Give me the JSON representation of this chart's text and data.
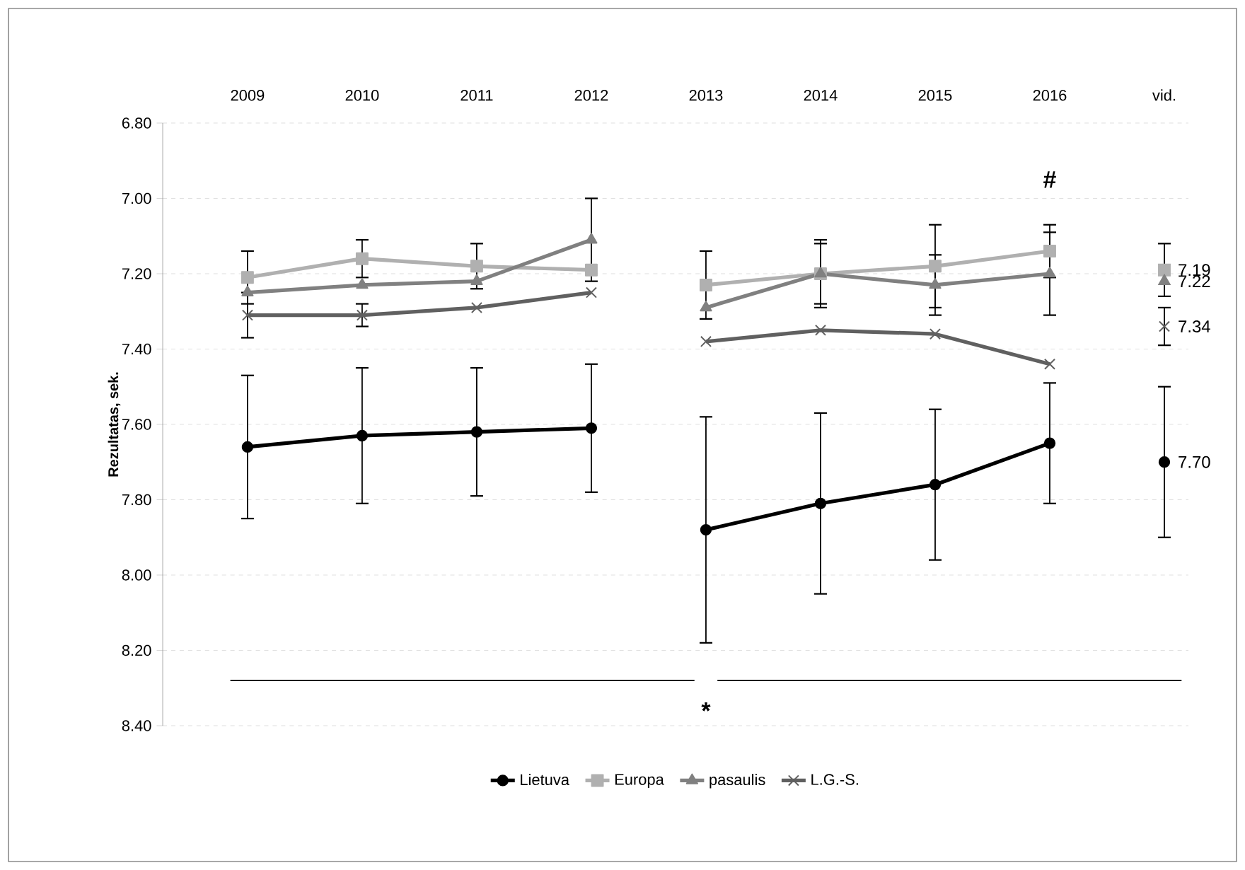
{
  "chart_data": {
    "type": "line",
    "ylabel": "Rezultatas, sek.",
    "categories": [
      "2009",
      "2010",
      "2011",
      "2012",
      "2013",
      "2014",
      "2015",
      "2016",
      "vid."
    ],
    "ylim": [
      8.4,
      6.8
    ],
    "yticks": [
      {
        "value": 6.8,
        "label": "6.80"
      },
      {
        "value": 7.0,
        "label": "7.00"
      },
      {
        "value": 7.2,
        "label": "7.20"
      },
      {
        "value": 7.4,
        "label": "7.40"
      },
      {
        "value": 7.6,
        "label": "7.60"
      },
      {
        "value": 7.8,
        "label": "7.80"
      },
      {
        "value": 8.0,
        "label": "8.00"
      },
      {
        "value": 8.2,
        "label": "8.20"
      },
      {
        "value": 8.4,
        "label": "8.40"
      }
    ],
    "grid": "y",
    "legend": "bottom",
    "series": [
      {
        "name": "Lietuva",
        "color": "#000000",
        "marker": "circle",
        "values": [
          7.66,
          7.63,
          7.62,
          7.61,
          null,
          null,
          null,
          null,
          null
        ],
        "errors": [
          0.19,
          0.18,
          0.17,
          0.17,
          null,
          null,
          null,
          null,
          null
        ]
      },
      {
        "name": "Europa",
        "color": "#b0b0b0",
        "marker": "square",
        "values": [
          7.21,
          7.16,
          7.18,
          7.19,
          null,
          null,
          null,
          null,
          null
        ],
        "errors": [
          0.07,
          0.05,
          0.06,
          null,
          null,
          null,
          null,
          null,
          null
        ]
      },
      {
        "name": "pasaulis",
        "color": "#808080",
        "marker": "triangle",
        "values": [
          7.25,
          7.23,
          7.22,
          7.11,
          null,
          null,
          null,
          null,
          null
        ],
        "errors": [
          null,
          null,
          null,
          0.11,
          null,
          null,
          null,
          null,
          null
        ]
      },
      {
        "name": "L.G.-S.",
        "color": "#606060",
        "marker": "cross",
        "values": [
          7.31,
          7.31,
          7.29,
          7.25,
          null,
          null,
          null,
          null,
          null
        ],
        "errors": [
          0.06,
          0.03,
          null,
          null,
          null,
          null,
          null,
          null,
          null
        ]
      },
      {
        "color": "#000000",
        "marker": "circle",
        "values": [
          null,
          null,
          null,
          null,
          7.88,
          7.81,
          7.76,
          7.65,
          null
        ],
        "errors": [
          null,
          null,
          null,
          null,
          0.3,
          0.24,
          0.2,
          0.16,
          null
        ]
      },
      {
        "color": "#b0b0b0",
        "marker": "square",
        "values": [
          null,
          null,
          null,
          null,
          7.23,
          7.2,
          7.18,
          7.14,
          null
        ],
        "errors": [
          null,
          null,
          null,
          null,
          0.09,
          0.08,
          0.11,
          0.07,
          null
        ]
      },
      {
        "color": "#808080",
        "marker": "triangle",
        "values": [
          null,
          null,
          null,
          null,
          7.29,
          7.2,
          7.23,
          7.2,
          null
        ],
        "errors": [
          null,
          null,
          null,
          null,
          null,
          0.09,
          0.08,
          0.11,
          null
        ]
      },
      {
        "color": "#606060",
        "marker": "cross",
        "values": [
          null,
          null,
          null,
          null,
          7.38,
          7.35,
          7.36,
          7.44,
          null
        ]
      },
      {
        "type": "scatter",
        "color": "#000000",
        "marker": "circle",
        "values": [
          null,
          null,
          null,
          null,
          null,
          null,
          null,
          null,
          7.7
        ],
        "errors": [
          null,
          null,
          null,
          null,
          null,
          null,
          null,
          null,
          0.2
        ],
        "value_labels": [
          null,
          null,
          null,
          null,
          null,
          null,
          null,
          null,
          "7.70"
        ]
      },
      {
        "type": "scatter",
        "color": "#b0b0b0",
        "marker": "square",
        "values": [
          null,
          null,
          null,
          null,
          null,
          null,
          null,
          null,
          7.19
        ],
        "errors": [
          null,
          null,
          null,
          null,
          null,
          null,
          null,
          null,
          0.07
        ],
        "value_labels": [
          null,
          null,
          null,
          null,
          null,
          null,
          null,
          null,
          "7.19"
        ]
      },
      {
        "type": "scatter",
        "color": "#808080",
        "marker": "triangle",
        "values": [
          null,
          null,
          null,
          null,
          null,
          null,
          null,
          null,
          7.22
        ],
        "value_labels": [
          null,
          null,
          null,
          null,
          null,
          null,
          null,
          null,
          "7.22"
        ]
      },
      {
        "type": "scatter",
        "color": "#606060",
        "marker": "cross",
        "values": [
          null,
          null,
          null,
          null,
          null,
          null,
          null,
          null,
          7.34
        ],
        "errors": [
          null,
          null,
          null,
          null,
          null,
          null,
          null,
          null,
          0.05
        ],
        "value_labels": [
          null,
          null,
          null,
          null,
          null,
          null,
          null,
          null,
          "7.34"
        ]
      }
    ],
    "annotations": [
      "#",
      "*"
    ]
  }
}
